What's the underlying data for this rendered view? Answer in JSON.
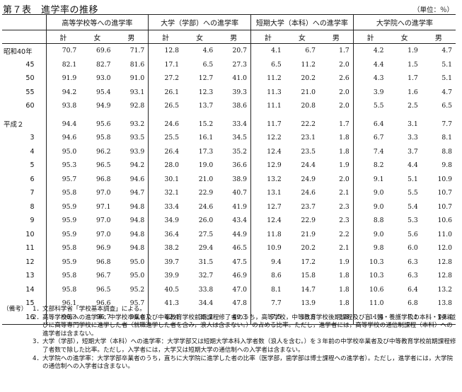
{
  "title": "第７表　進学率の推移",
  "unit": "（単位：％）",
  "groups": [
    "高等学校等への進学率",
    "大学（学部）への進学率",
    "短期大学（本科）への進学率",
    "大学院への進学率"
  ],
  "subheaders": [
    "計",
    "女",
    "男"
  ],
  "rows": [
    {
      "year": "昭和40年",
      "values": [
        "70.7",
        "69.6",
        "71.7",
        "12.8",
        "4.6",
        "20.7",
        "4.1",
        "6.7",
        "1.7",
        "4.2",
        "1.9",
        "4.7"
      ]
    },
    {
      "year": "45",
      "values": [
        "82.1",
        "82.7",
        "81.6",
        "17.1",
        "6.5",
        "27.3",
        "6.5",
        "11.2",
        "2.0",
        "4.4",
        "1.5",
        "5.1"
      ]
    },
    {
      "year": "50",
      "values": [
        "91.9",
        "93.0",
        "91.0",
        "27.2",
        "12.7",
        "41.0",
        "11.2",
        "20.2",
        "2.6",
        "4.3",
        "1.7",
        "5.1"
      ]
    },
    {
      "year": "55",
      "values": [
        "94.2",
        "95.4",
        "93.1",
        "26.1",
        "12.3",
        "39.3",
        "11.3",
        "21.0",
        "2.0",
        "3.9",
        "1.6",
        "4.7"
      ]
    },
    {
      "year": "60",
      "values": [
        "93.8",
        "94.9",
        "92.8",
        "26.5",
        "13.7",
        "38.6",
        "11.1",
        "20.8",
        "2.0",
        "5.5",
        "2.5",
        "6.5"
      ]
    },
    {
      "year": "平成２",
      "values": [
        "94.4",
        "95.6",
        "93.2",
        "24.6",
        "15.2",
        "33.4",
        "11.7",
        "22.2",
        "1.7",
        "6.4",
        "3.1",
        "7.7"
      ]
    },
    {
      "year": "3",
      "values": [
        "94.6",
        "95.8",
        "93.5",
        "25.5",
        "16.1",
        "34.5",
        "12.2",
        "23.1",
        "1.8",
        "6.7",
        "3.3",
        "8.1"
      ]
    },
    {
      "year": "4",
      "values": [
        "95.0",
        "96.2",
        "93.9",
        "26.4",
        "17.3",
        "35.2",
        "12.4",
        "23.5",
        "1.8",
        "7.4",
        "3.7",
        "8.8"
      ]
    },
    {
      "year": "5",
      "values": [
        "95.3",
        "96.5",
        "94.2",
        "28.0",
        "19.0",
        "36.6",
        "12.9",
        "24.4",
        "1.9",
        "8.2",
        "4.4",
        "9.8"
      ]
    },
    {
      "year": "6",
      "values": [
        "95.7",
        "96.8",
        "94.6",
        "30.1",
        "21.0",
        "38.9",
        "13.2",
        "24.9",
        "2.0",
        "9.1",
        "5.1",
        "10.9"
      ]
    },
    {
      "year": "7",
      "values": [
        "95.8",
        "97.0",
        "94.7",
        "32.1",
        "22.9",
        "40.7",
        "13.1",
        "24.6",
        "2.1",
        "9.0",
        "5.5",
        "10.7"
      ]
    },
    {
      "year": "8",
      "values": [
        "95.9",
        "97.1",
        "94.8",
        "33.4",
        "24.6",
        "41.9",
        "12.7",
        "23.7",
        "2.3",
        "9.0",
        "5.4",
        "10.7"
      ]
    },
    {
      "year": "9",
      "values": [
        "95.9",
        "97.0",
        "94.8",
        "34.9",
        "26.0",
        "43.4",
        "12.4",
        "22.9",
        "2.3",
        "8.8",
        "5.3",
        "10.6"
      ]
    },
    {
      "year": "10",
      "values": [
        "95.9",
        "97.0",
        "94.8",
        "36.4",
        "27.5",
        "44.9",
        "11.8",
        "21.9",
        "2.2",
        "9.0",
        "5.6",
        "11.0"
      ]
    },
    {
      "year": "11",
      "values": [
        "95.8",
        "96.9",
        "94.8",
        "38.2",
        "29.4",
        "46.5",
        "10.9",
        "20.2",
        "2.1",
        "9.8",
        "6.0",
        "12.0"
      ]
    },
    {
      "year": "12",
      "values": [
        "95.9",
        "96.8",
        "95.0",
        "39.7",
        "31.5",
        "47.5",
        "9.4",
        "17.2",
        "1.9",
        "10.3",
        "6.3",
        "12.8"
      ]
    },
    {
      "year": "13",
      "values": [
        "95.8",
        "96.7",
        "95.0",
        "39.9",
        "32.7",
        "46.9",
        "8.6",
        "15.8",
        "1.8",
        "10.3",
        "6.3",
        "12.8"
      ]
    },
    {
      "year": "14",
      "values": [
        "95.8",
        "96.5",
        "95.2",
        "40.5",
        "33.8",
        "47.0",
        "8.1",
        "14.7",
        "1.8",
        "10.6",
        "6.4",
        "13.2"
      ]
    },
    {
      "year": "15",
      "values": [
        "96.1",
        "96.6",
        "95.7",
        "41.3",
        "34.4",
        "47.8",
        "7.7",
        "13.9",
        "1.8",
        "11.0",
        "6.8",
        "13.8"
      ]
    },
    {
      "year": "16",
      "values": [
        "96.3",
        "96.7",
        "96.0",
        "42.4",
        "35.2",
        "49.3",
        "7.5",
        "13.5",
        "1.8",
        "11.4",
        "7.1",
        "14.4"
      ]
    }
  ],
  "notes_label": "（備考）",
  "notes": [
    "1．文部科学省「学校基本調査」による。",
    "2．高等学校等への進学率：中学校卒業者及び中等教育学校前期課程修了者のうち，高等学校，中等教育学校後期課程及び盲・聾・養護学校の本科・別科並びに高等専門学校に進学した者（就職進学した者を含み，浪人は含まない。）の占める比率。ただし，進学者には，高等学校の通信制課程（本科）への進学者は含まない。",
    "3．大学（学部），短期大学（本科）への進学率：大学学部又は短期大学本科入学者数（浪人を含む。）を３年前の中学校卒業者及び中等教育学校前期課程修了者数で除した比率。ただし，入学者には，大学又は短期大学の通信制への入学者は含まない。",
    "4．大学院への進学率：大学学部卒業者のうち，直ちに大学院に進学した者の比率（医学部，歯学部は博士課程への進学者）。ただし，進学者には，大学院の通信制への入学者は含まない。"
  ]
}
